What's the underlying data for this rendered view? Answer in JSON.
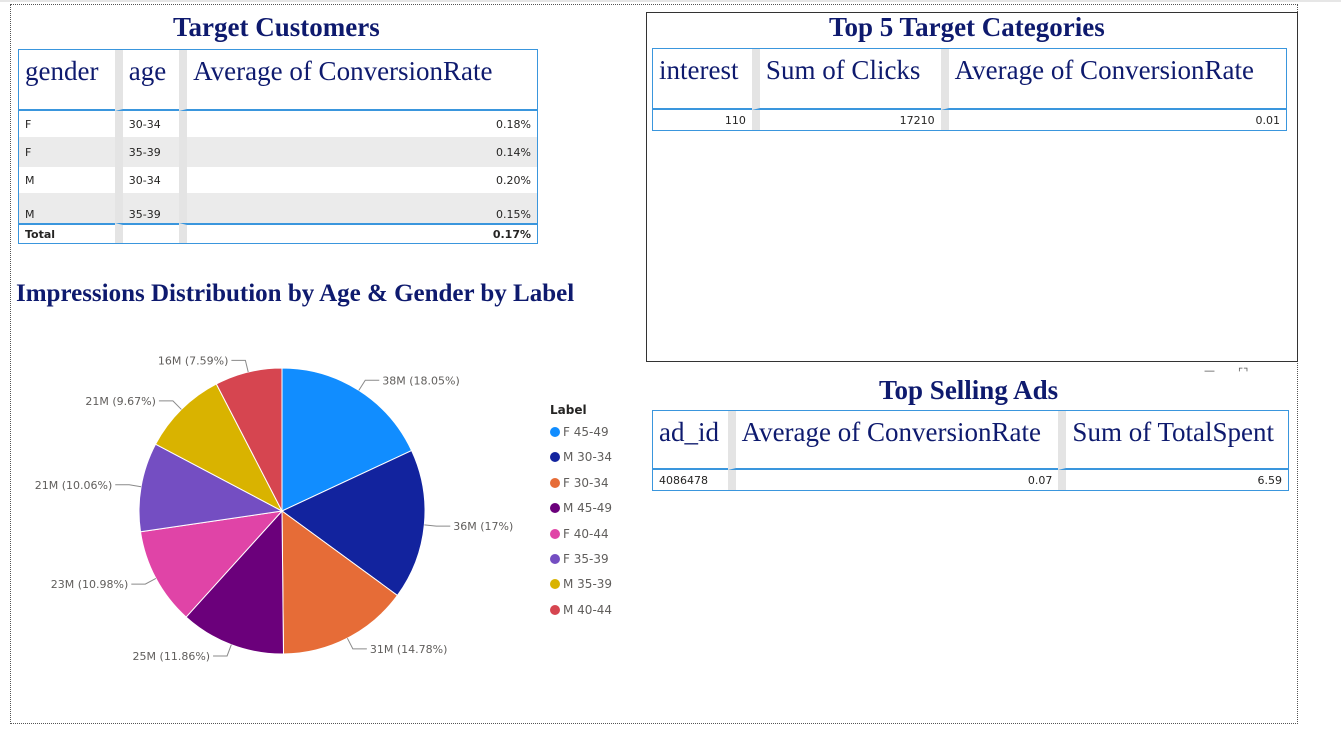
{
  "target_customers": {
    "title": "Target Customers",
    "headers": [
      "gender",
      "age",
      "Average of ConversionRate"
    ],
    "rows": [
      [
        "F",
        "30-34",
        "0.18%"
      ],
      [
        "F",
        "35-39",
        "0.14%"
      ],
      [
        "M",
        "30-34",
        "0.20%"
      ],
      [
        "M",
        "35-39",
        "0.15%"
      ]
    ],
    "total": {
      "label": "Total",
      "value": "0.17%"
    }
  },
  "top_categories": {
    "title": "Top 5 Target Categories",
    "headers": [
      "interest",
      "Sum of Clicks",
      "Average of ConversionRate"
    ],
    "rows": [
      [
        "110",
        "17210",
        "0.01"
      ]
    ]
  },
  "top_ads": {
    "title": "Top Selling Ads",
    "headers": [
      "ad_id",
      "Average of ConversionRate",
      "Sum of TotalSpent"
    ],
    "rows": [
      [
        "4086478",
        "0.07",
        "6.59"
      ]
    ]
  },
  "chart_data": {
    "type": "pie",
    "title": "Impressions Distribution by Age & Gender by Label",
    "legend_title": "Label",
    "legend_position": "right",
    "slices": [
      {
        "label": "F 45-49",
        "value_label": "38M",
        "percent": 18.05,
        "color": "#118dff"
      },
      {
        "label": "M 30-34",
        "value_label": "36M",
        "percent": 17,
        "color": "#12239e"
      },
      {
        "label": "F 30-34",
        "value_label": "31M",
        "percent": 14.78,
        "color": "#e66c37"
      },
      {
        "label": "M 45-49",
        "value_label": "25M",
        "percent": 11.86,
        "color": "#6b007b"
      },
      {
        "label": "F 40-44",
        "value_label": "23M",
        "percent": 10.98,
        "color": "#e044a7"
      },
      {
        "label": "F 35-39",
        "value_label": "21M",
        "percent": 10.06,
        "color": "#744ec2"
      },
      {
        "label": "M 35-39",
        "value_label": "21M",
        "percent": 9.67,
        "color": "#d9b300"
      },
      {
        "label": "M 40-44",
        "value_label": "16M",
        "percent": 7.59,
        "color": "#d64550"
      }
    ]
  }
}
